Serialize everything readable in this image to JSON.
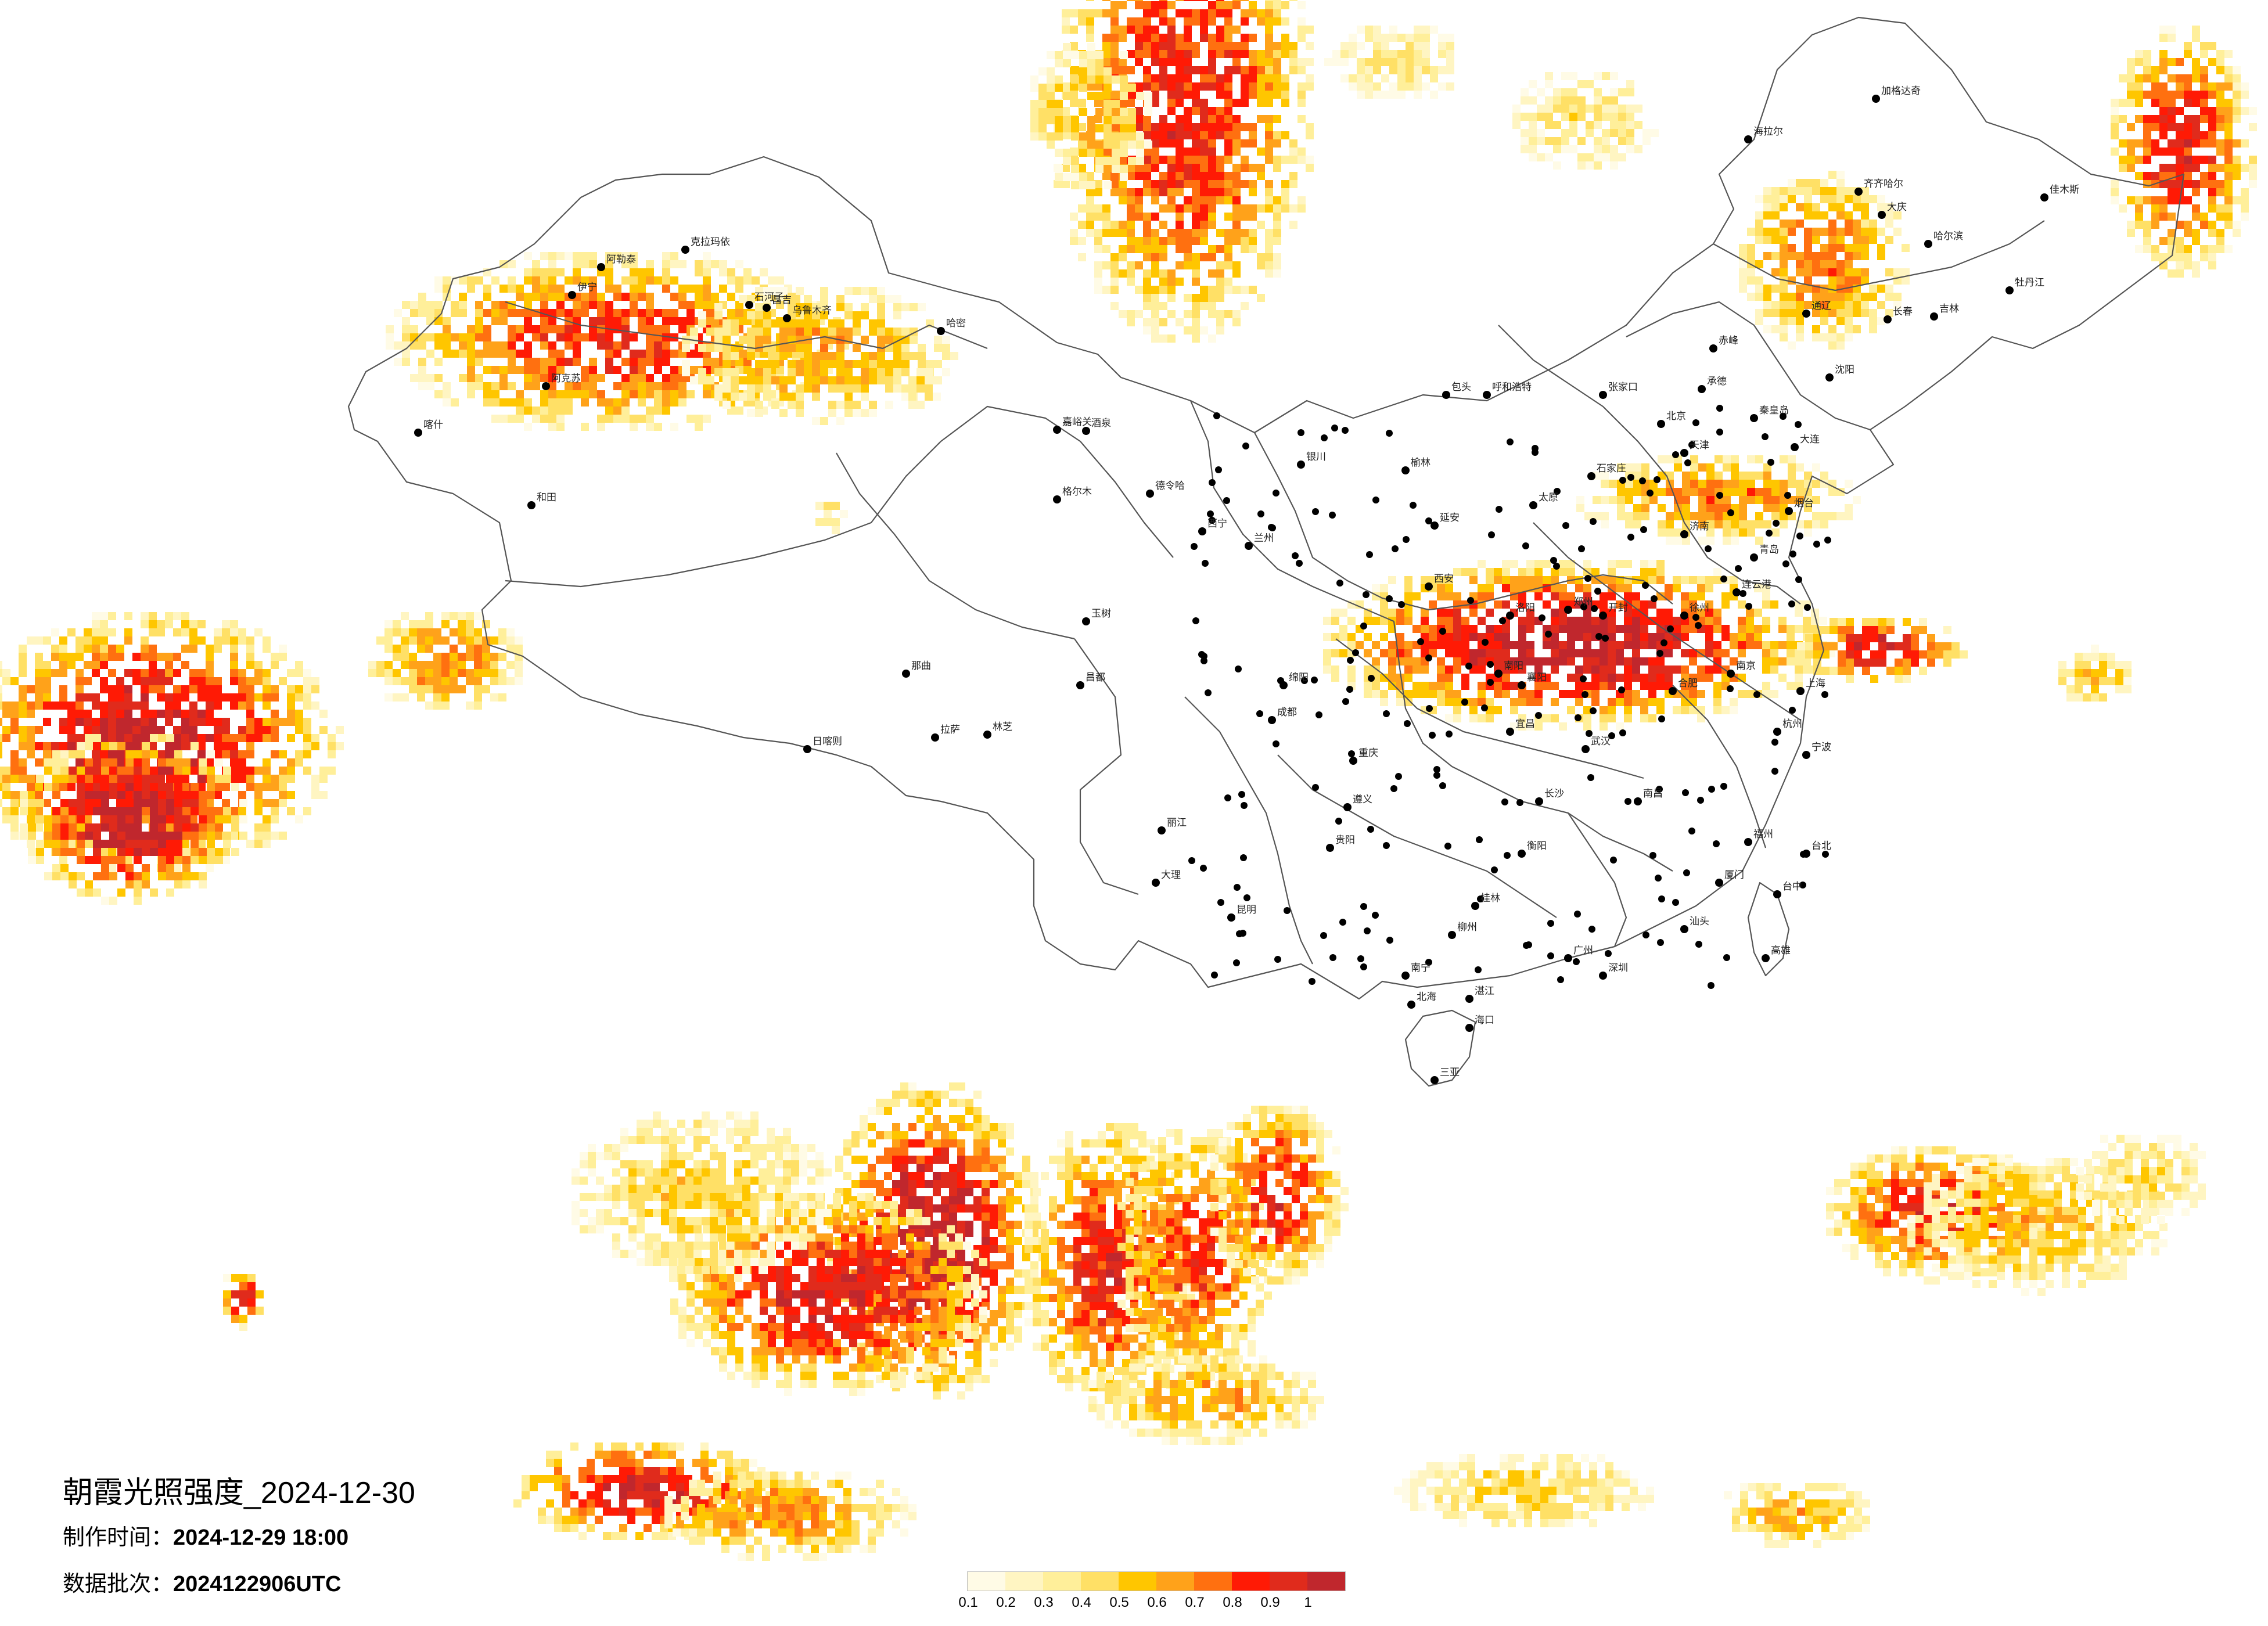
{
  "title": {
    "prefix": "朝霞光照强度",
    "date": "_2024-12-30"
  },
  "made_time": {
    "label": "制作时间：",
    "value": "2024-12-29 18:00"
  },
  "batch": {
    "label": "数据批次：",
    "value": "2024122906UTC"
  },
  "legend": {
    "ticks": [
      "0.1",
      "0.2",
      "0.3",
      "0.4",
      "0.5",
      "0.6",
      "0.7",
      "0.8",
      "0.9",
      "1"
    ],
    "colors": [
      "#fffbe6",
      "#fff5c2",
      "#ffef9a",
      "#ffe066",
      "#ffc600",
      "#ffa21a",
      "#ff7010",
      "#ff1a05",
      "#e02b1c",
      "#c0272d"
    ]
  },
  "cities": [
    "伊宁",
    "阿勒泰",
    "克拉玛依",
    "石河子",
    "昌吉",
    "乌鲁木齐",
    "阿克苏",
    "喀什",
    "和田",
    "哈密",
    "嘉峪关",
    "酒泉",
    "格尔木",
    "德令哈",
    "西宁",
    "兰州",
    "拉萨",
    "日喀则",
    "林芝",
    "那曲",
    "昌都",
    "玉树",
    "呼和浩特",
    "包头",
    "银川",
    "榆林",
    "延安",
    "西安",
    "太原",
    "石家庄",
    "北京",
    "天津",
    "张家口",
    "承德",
    "秦皇岛",
    "沈阳",
    "大连",
    "长春",
    "吉林",
    "哈尔滨",
    "齐齐哈尔",
    "大庆",
    "牡丹江",
    "佳木斯",
    "海拉尔",
    "加格达奇",
    "通辽",
    "赤峰",
    "济南",
    "青岛",
    "烟台",
    "郑州",
    "开封",
    "洛阳",
    "南阳",
    "徐州",
    "连云港",
    "南京",
    "合肥",
    "上海",
    "杭州",
    "宁波",
    "武汉",
    "宜昌",
    "襄阳",
    "南昌",
    "长沙",
    "衡阳",
    "成都",
    "重庆",
    "绵阳",
    "贵阳",
    "遵义",
    "昆明",
    "大理",
    "丽江",
    "南宁",
    "桂林",
    "柳州",
    "广州",
    "深圳",
    "汕头",
    "厦门",
    "福州",
    "台北",
    "台中",
    "高雄",
    "海口",
    "三亚",
    "北海",
    "湛江"
  ]
}
